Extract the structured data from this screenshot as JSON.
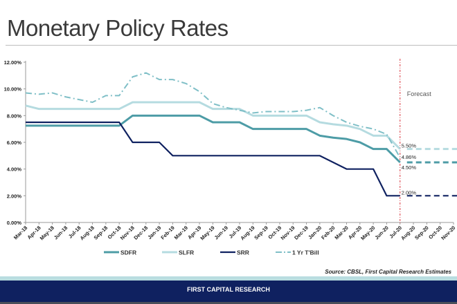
{
  "page": {
    "title": "Monetary Policy Rates",
    "source": "Source: CBSL, First Capital Research Estimates",
    "footer": "FIRST CAPITAL RESEARCH"
  },
  "chart_data": {
    "type": "line",
    "title": "Monetary Policy Rates",
    "xlabel": "",
    "ylabel": "",
    "ylim": [
      0,
      12
    ],
    "yticks": [
      "0.00%",
      "2.00%",
      "4.00%",
      "6.00%",
      "8.00%",
      "10.00%",
      "12.00%"
    ],
    "categories": [
      "Mar-18",
      "Apr-18",
      "May-18",
      "Jun-18",
      "Jul-18",
      "Aug-18",
      "Sep-18",
      "Oct-18",
      "Nov-18",
      "Dec-18",
      "Jan-19",
      "Feb-19",
      "Mar-19",
      "Apr-19",
      "May-19",
      "Jun-19",
      "Jul-19",
      "Aug-19",
      "Sep-19",
      "Oct-19",
      "Nov-19",
      "Dec-19",
      "Jan-20",
      "Feb-20",
      "Mar-20",
      "Apr-20",
      "May-20",
      "Jun-20",
      "Jul-20",
      "Aug-20",
      "Sep-20",
      "Oct-20",
      "Nov-20"
    ],
    "forecast_start_index": 28,
    "forecast_label": "Forecast",
    "series": [
      {
        "name": "SDFR",
        "color": "#4d9ca6",
        "values": [
          7.25,
          7.25,
          7.25,
          7.25,
          7.25,
          7.25,
          7.25,
          7.25,
          8.0,
          8.0,
          8.0,
          8.0,
          8.0,
          8.0,
          7.5,
          7.5,
          7.5,
          7.0,
          7.0,
          7.0,
          7.0,
          7.0,
          6.5,
          6.35,
          6.25,
          6.0,
          5.5,
          5.5,
          4.5,
          4.5,
          4.5,
          4.5,
          4.5
        ]
      },
      {
        "name": "SLFR",
        "color": "#b5dbe0",
        "values": [
          8.75,
          8.5,
          8.5,
          8.5,
          8.5,
          8.5,
          8.5,
          8.5,
          9.0,
          9.0,
          9.0,
          9.0,
          9.0,
          9.0,
          8.5,
          8.5,
          8.5,
          8.0,
          8.0,
          8.0,
          8.0,
          8.0,
          7.5,
          7.35,
          7.25,
          7.0,
          6.5,
          6.5,
          5.5,
          5.5,
          5.5,
          5.5,
          5.5
        ]
      },
      {
        "name": "SRR",
        "color": "#0f2160",
        "values": [
          7.5,
          7.5,
          7.5,
          7.5,
          7.5,
          7.5,
          7.5,
          7.5,
          6.0,
          6.0,
          6.0,
          5.0,
          5.0,
          5.0,
          5.0,
          5.0,
          5.0,
          5.0,
          5.0,
          5.0,
          5.0,
          5.0,
          5.0,
          4.5,
          4.0,
          4.0,
          4.0,
          2.0,
          2.0,
          2.0,
          2.0,
          2.0,
          2.0
        ]
      },
      {
        "name": "1 Yr T'Bill",
        "color": "#7fbfc7",
        "values": [
          9.7,
          9.6,
          9.7,
          9.4,
          9.2,
          9.0,
          9.5,
          9.5,
          10.9,
          11.2,
          10.7,
          10.7,
          10.4,
          9.8,
          8.9,
          8.6,
          8.4,
          8.2,
          8.3,
          8.3,
          8.3,
          8.4,
          8.6,
          8.0,
          7.5,
          7.2,
          7.0,
          6.6,
          4.86,
          null,
          null,
          null,
          null
        ]
      }
    ],
    "annotations": [
      {
        "label": "5.50%",
        "x": "Jul-20",
        "y": 5.5
      },
      {
        "label": "4.86%",
        "x": "Jul-20",
        "y": 4.86
      },
      {
        "label": "4.50%",
        "x": "Jul-20",
        "y": 4.5
      },
      {
        "label": "2.00%",
        "x": "Jul-20",
        "y": 2.0
      }
    ],
    "legend": [
      "SDFR",
      "SLFR",
      "SRR",
      "1 Yr T'Bill"
    ],
    "legend_position": "bottom",
    "grid": false
  }
}
